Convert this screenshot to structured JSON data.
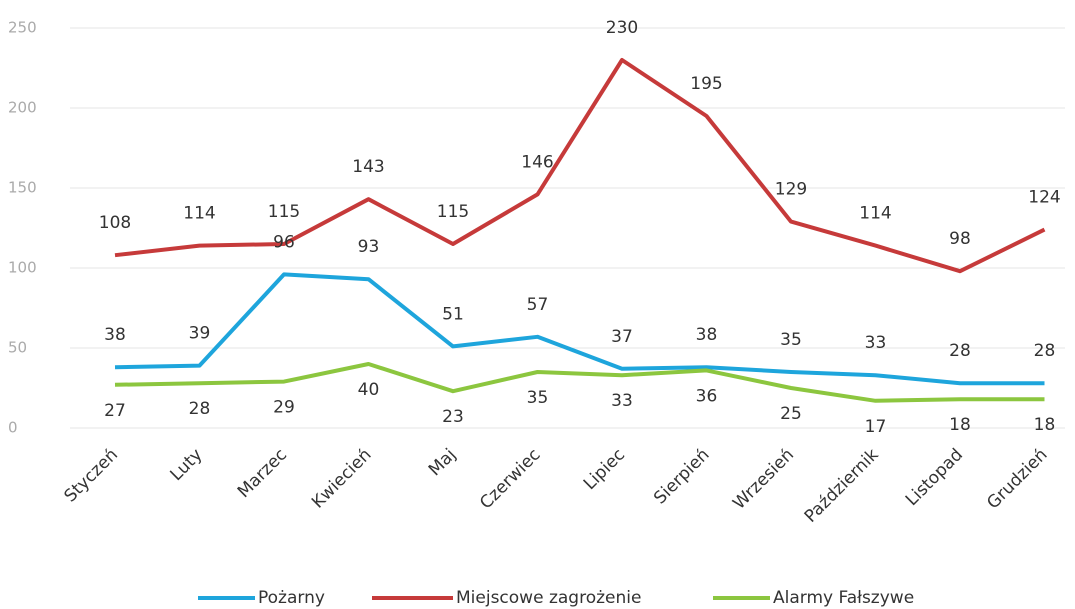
{
  "chart_data": {
    "type": "line",
    "categories": [
      "Styczeń",
      "Luty",
      "Marzec",
      "Kwiecień",
      "Maj",
      "Czerwiec",
      "Lipiec",
      "Sierpień",
      "Wrzesień",
      "Październik",
      "Listopad",
      "Grudzień"
    ],
    "series": [
      {
        "name": "Pożarny",
        "color": "#1ea5dc",
        "values": [
          38,
          39,
          96,
          93,
          51,
          57,
          37,
          38,
          35,
          33,
          28,
          28
        ]
      },
      {
        "name": "Miejscowe zagrożenie",
        "color": "#c63a3a",
        "values": [
          108,
          114,
          115,
          143,
          115,
          146,
          230,
          195,
          129,
          114,
          98,
          124
        ]
      },
      {
        "name": "Alarmy Fałszywe",
        "color": "#8cc63f",
        "values": [
          27,
          28,
          29,
          40,
          23,
          35,
          33,
          36,
          25,
          17,
          18,
          18
        ]
      }
    ],
    "ylim": [
      0,
      250
    ],
    "yticks": [
      0,
      50,
      100,
      150,
      200,
      250
    ],
    "grid": true,
    "legend": "bottom"
  }
}
